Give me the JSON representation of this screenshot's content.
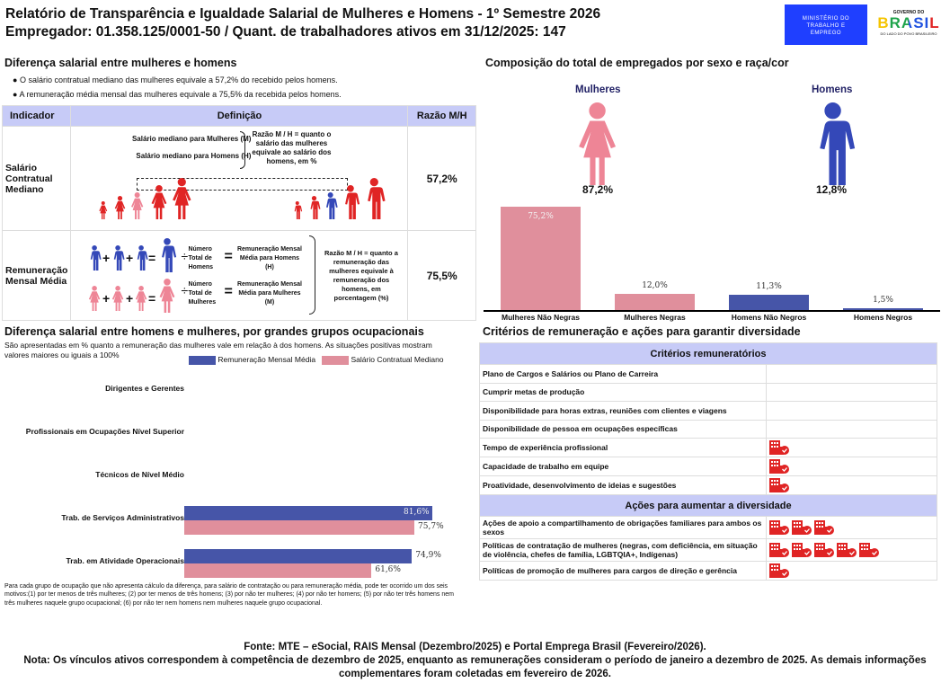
{
  "header": {
    "title": "Relatório de Transparência e Igualdade Salarial de Mulheres e Homens - 1º Semestre 2026",
    "subtitle": "Empregador: 01.358.125/0001-50 / Quant. de trabalhadores ativos em 31/12/2025: 147",
    "logo_ministry": "MINISTÉRIO DO TRABALHO E EMPREGO",
    "logo_gov_top": "GOVERNO DO",
    "logo_gov_main": "BRASIL",
    "logo_gov_bottom": "DO LADO DO POVO BRASILEIRO"
  },
  "diff": {
    "title": "Diferença salarial entre mulheres e homens",
    "bullets": [
      "O salário contratual mediano das mulheres equivale a 57,2% do recebido pelos homens.",
      "A remuneração média mensal das mulheres equivale a 75,5% da recebida pelos homens."
    ],
    "table": {
      "headers": [
        "Indicador",
        "Definição",
        "Razão M/H"
      ],
      "row1": {
        "indicator": "Salário Contratual Mediano",
        "m_label": "Salário mediano para Mulheres (M)",
        "h_label": "Salário mediano para Homens (H)",
        "explain": "Razão M / H = quanto o salário das mulheres equivale ao salário dos homens, em %",
        "value": "57,2%"
      },
      "row2": {
        "indicator": "Remuneração Mensal Média",
        "total_h": "Número Total de Homens",
        "total_m": "Número Total de Mulheres",
        "rem_h": "Remuneração Mensal Média para Homens (H)",
        "rem_m": "Remuneração Mensal Média para Mulheres (M)",
        "explain": "Razão M / H = quanto a remuneração das mulheres equivale à remuneração dos homens, em porcentagem (%)",
        "value": "75,5%",
        "plus": "+",
        "eq": "=",
        "div": "÷"
      }
    }
  },
  "composition": {
    "title": "Composição do total de empregados por sexo e raça/cor",
    "women_label": "Mulheres",
    "men_label": "Homens",
    "women_pct": "87,2%",
    "men_pct": "12,8%",
    "colors": {
      "women": "#e08f9c",
      "men": "#4655a8",
      "women_icon": "#ee8596",
      "men_icon": "#3448b8"
    }
  },
  "chart_data": [
    {
      "type": "bar",
      "title": "Composição do total de empregados por sexo e raça/cor",
      "categories": [
        "Mulheres Não Negras",
        "Mulheres Negras",
        "Homens Não Negros",
        "Homens Negros"
      ],
      "values": [
        75.2,
        12.0,
        11.3,
        1.5
      ],
      "labels": [
        "75,2%",
        "12,0%",
        "11,3%",
        "1,5%"
      ],
      "colors": [
        "#e08f9c",
        "#e08f9c",
        "#4655a8",
        "#4655a8"
      ],
      "ylim": [
        0,
        80
      ]
    },
    {
      "type": "bar",
      "orientation": "horizontal",
      "title": "Diferença salarial entre homens e mulheres, por grandes grupos ocupacionais",
      "legend": "top-right",
      "categories": [
        "Dirigentes e Gerentes",
        "Profissionais em Ocupações Nível Superior",
        "Técnicos de Nível Médio",
        "Trab. de Serviços Administrativos",
        "Trab. em Atividade Operacionais"
      ],
      "series": [
        {
          "name": "Remuneração Mensal Média",
          "color": "#4655a8",
          "values": [
            null,
            null,
            null,
            81.6,
            74.9
          ],
          "labels": [
            null,
            null,
            null,
            "81,6%",
            "74,9%"
          ]
        },
        {
          "name": "Salário Contratual Mediano",
          "color": "#e08f9c",
          "values": [
            null,
            null,
            null,
            75.7,
            61.6
          ],
          "labels": [
            null,
            null,
            null,
            "75,7%",
            "61,6%"
          ]
        }
      ]
    }
  ],
  "groups": {
    "title": "Diferença salarial entre homens e mulheres, por grandes grupos ocupacionais",
    "desc": "São apresentadas em % quanto a remuneração das mulheres vale em relação à dos homens. As situações positivas mostram valores maiores ou iguais a 100%",
    "note": "Para cada grupo de ocupação que não apresenta cálculo da diferença, para salário de contratação ou para remuneração média, pode ter ocorrido um dos seis motivos:(1) por ter menos de três mulheres; (2) por ter menos de três homens; (3) por não ter mulheres; (4) por não ter homens; (5) por não ter três homens nem três mulheres naquele grupo ocupacional; (6) por não ter nem homens nem mulheres naquele grupo ocupacional."
  },
  "criteria": {
    "title": "Critérios de remuneração e ações para garantir diversidade",
    "header1": "Critérios remuneratórios",
    "rows1": [
      {
        "label": "Plano de Cargos e Salários ou Plano de Carreira",
        "icons": 0
      },
      {
        "label": "Cumprir metas de produção",
        "icons": 0
      },
      {
        "label": "Disponibilidade para horas extras, reuniões com clientes e viagens",
        "icons": 0
      },
      {
        "label": "Disponibilidade de pessoa em ocupações específicas",
        "icons": 0
      },
      {
        "label": "Tempo de experiência profissional",
        "icons": 1
      },
      {
        "label": "Capacidade de trabalho em equipe",
        "icons": 1
      },
      {
        "label": "Proatividade, desenvolvimento de ideias e sugestões",
        "icons": 1
      }
    ],
    "header2": "Ações para aumentar a diversidade",
    "rows2": [
      {
        "label": "Ações de apoio a compartilhamento de obrigações familiares para ambos os sexos",
        "icons": 3
      },
      {
        "label": "Políticas de contratação de mulheres (negras, com deficiência, em situação de violência, chefes de família, LGBTQIA+, Indígenas)",
        "icons": 5
      },
      {
        "label": "Políticas de promoção de mulheres para cargos de direção e gerência",
        "icons": 1
      }
    ],
    "icon": "building-check-icon",
    "icon_color": "#e02424"
  },
  "footer": {
    "source": "Fonte: MTE – eSocial, RAIS Mensal (Dezembro/2025) e Portal Emprega Brasil (Fevereiro/2026).",
    "note": "Nota: Os vínculos ativos correspondem à competência de dezembro de 2025, enquanto as remunerações consideram o período de janeiro a dezembro de 2025. As demais informações complementares foram coletadas em fevereiro de 2026."
  }
}
